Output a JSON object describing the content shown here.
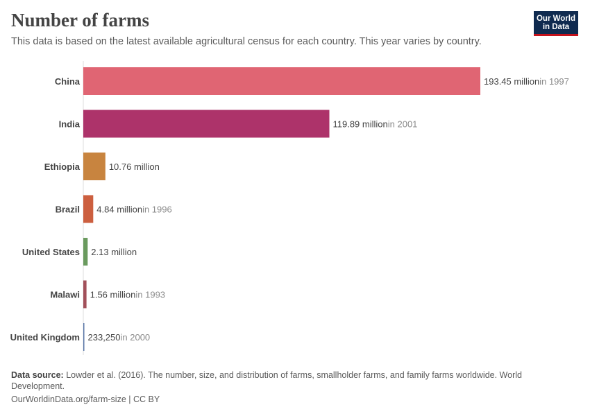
{
  "header": {
    "title": "Number of farms",
    "subtitle": "This data is based on the latest available agricultural census for each country. This year varies by country.",
    "logo_line1": "Our World",
    "logo_line2": "in Data"
  },
  "footer": {
    "source_label": "Data source:",
    "source_text": "Lowder et al. (2016). The number, size, and distribution of farms, smallholder farms, and family farms worldwide. World Development.",
    "license": "OurWorldinData.org/farm-size | CC BY"
  },
  "chart_data": {
    "type": "bar",
    "orientation": "horizontal",
    "title": "Number of farms",
    "categories": [
      "China",
      "India",
      "Ethiopia",
      "Brazil",
      "United States",
      "Malawi",
      "United Kingdom"
    ],
    "values": [
      193450000,
      119890000,
      10760000,
      4840000,
      2130000,
      1560000,
      233250
    ],
    "value_labels": [
      "193.45 million",
      "119.89 million",
      "10.76 million",
      "4.84 million",
      "2.13 million",
      "1.56 million",
      "233,250"
    ],
    "year_labels": [
      "in 1997",
      "in 2001",
      "",
      "in 1996",
      "",
      "in 1993",
      "in 2000"
    ],
    "colors": [
      "#e06573",
      "#ad336a",
      "#c8843f",
      "#cc5f3f",
      "#6a9a5e",
      "#a2505a",
      "#5a77a8"
    ],
    "xlim": [
      0,
      193450000
    ],
    "grid": false
  }
}
